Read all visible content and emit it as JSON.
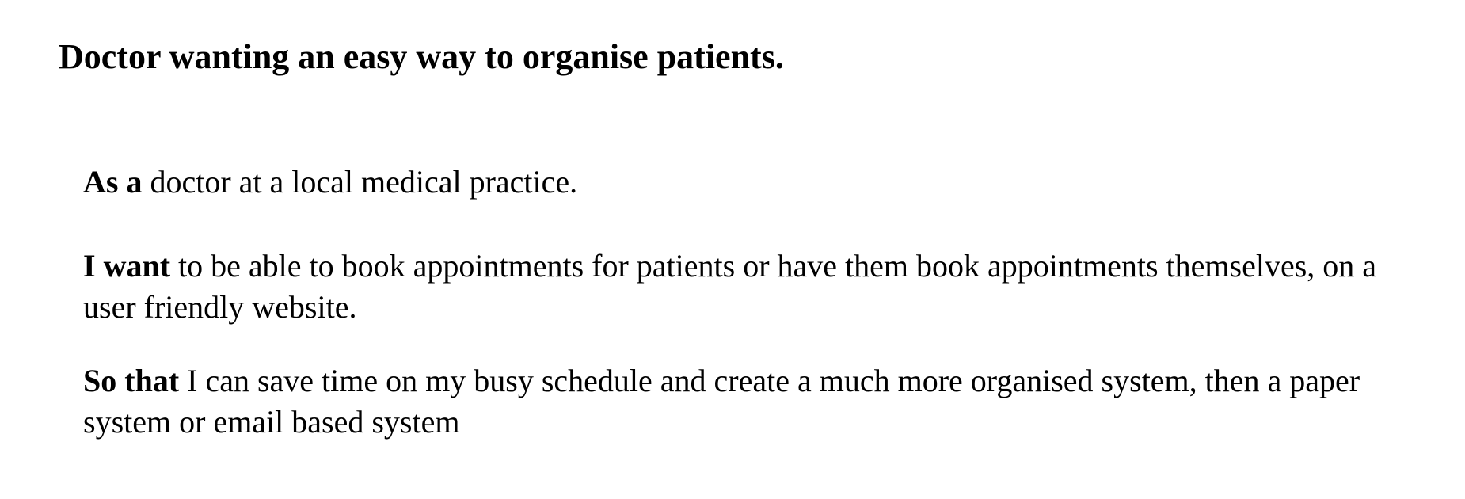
{
  "document": {
    "title": "Doctor wanting an easy way to organise patients.",
    "story": {
      "as_a": {
        "lead": "As a",
        "text": " doctor at a local medical practice."
      },
      "i_want": {
        "lead": "I want",
        "text": " to be able to book appointments for patients or have them book appointments themselves, on a user friendly website."
      },
      "so_that": {
        "lead": "So that",
        "text": " I can save time on my busy schedule and create a much more organised system, then a paper system or email based system"
      }
    }
  }
}
